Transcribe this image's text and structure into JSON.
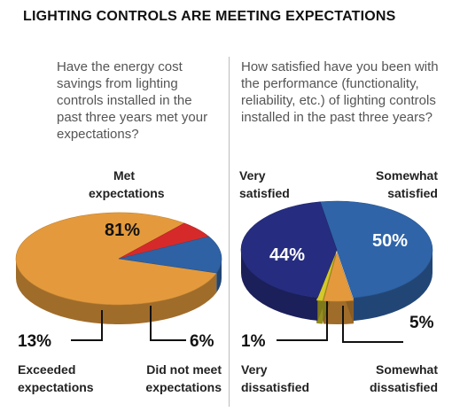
{
  "title": "LIGHTING CONTROLS ARE MEETING EXPECTATIONS",
  "chart_data": [
    {
      "type": "pie",
      "question": "Have the energy cost savings from lighting controls installed in the past three years met your expectations?",
      "slices": [
        {
          "label": "Met expectations",
          "value": 81,
          "display": "81%",
          "color": "#e49a3c"
        },
        {
          "label": "Did not meet expectations",
          "value": 6,
          "display": "6%",
          "color": "#d62a2a"
        },
        {
          "label": "Exceeded expectations",
          "value": 13,
          "display": "13%",
          "color": "#2e62a4"
        }
      ]
    },
    {
      "type": "pie",
      "question": "How satisfied have you been with the performance (functionality, reliability, etc.) of lighting controls installed in the past three years?",
      "slices": [
        {
          "label": "Somewhat satisfied",
          "value": 50,
          "display": "50%",
          "color": "#2f64a8"
        },
        {
          "label": "Somewhat dissatisfied",
          "value": 5,
          "display": "5%",
          "color": "#e49a3c"
        },
        {
          "label": "Very dissatisfied",
          "value": 1,
          "display": "1%",
          "color": "#d4c92a"
        },
        {
          "label": "Very satisfied",
          "value": 44,
          "display": "44%",
          "color": "#262d80"
        }
      ]
    }
  ]
}
